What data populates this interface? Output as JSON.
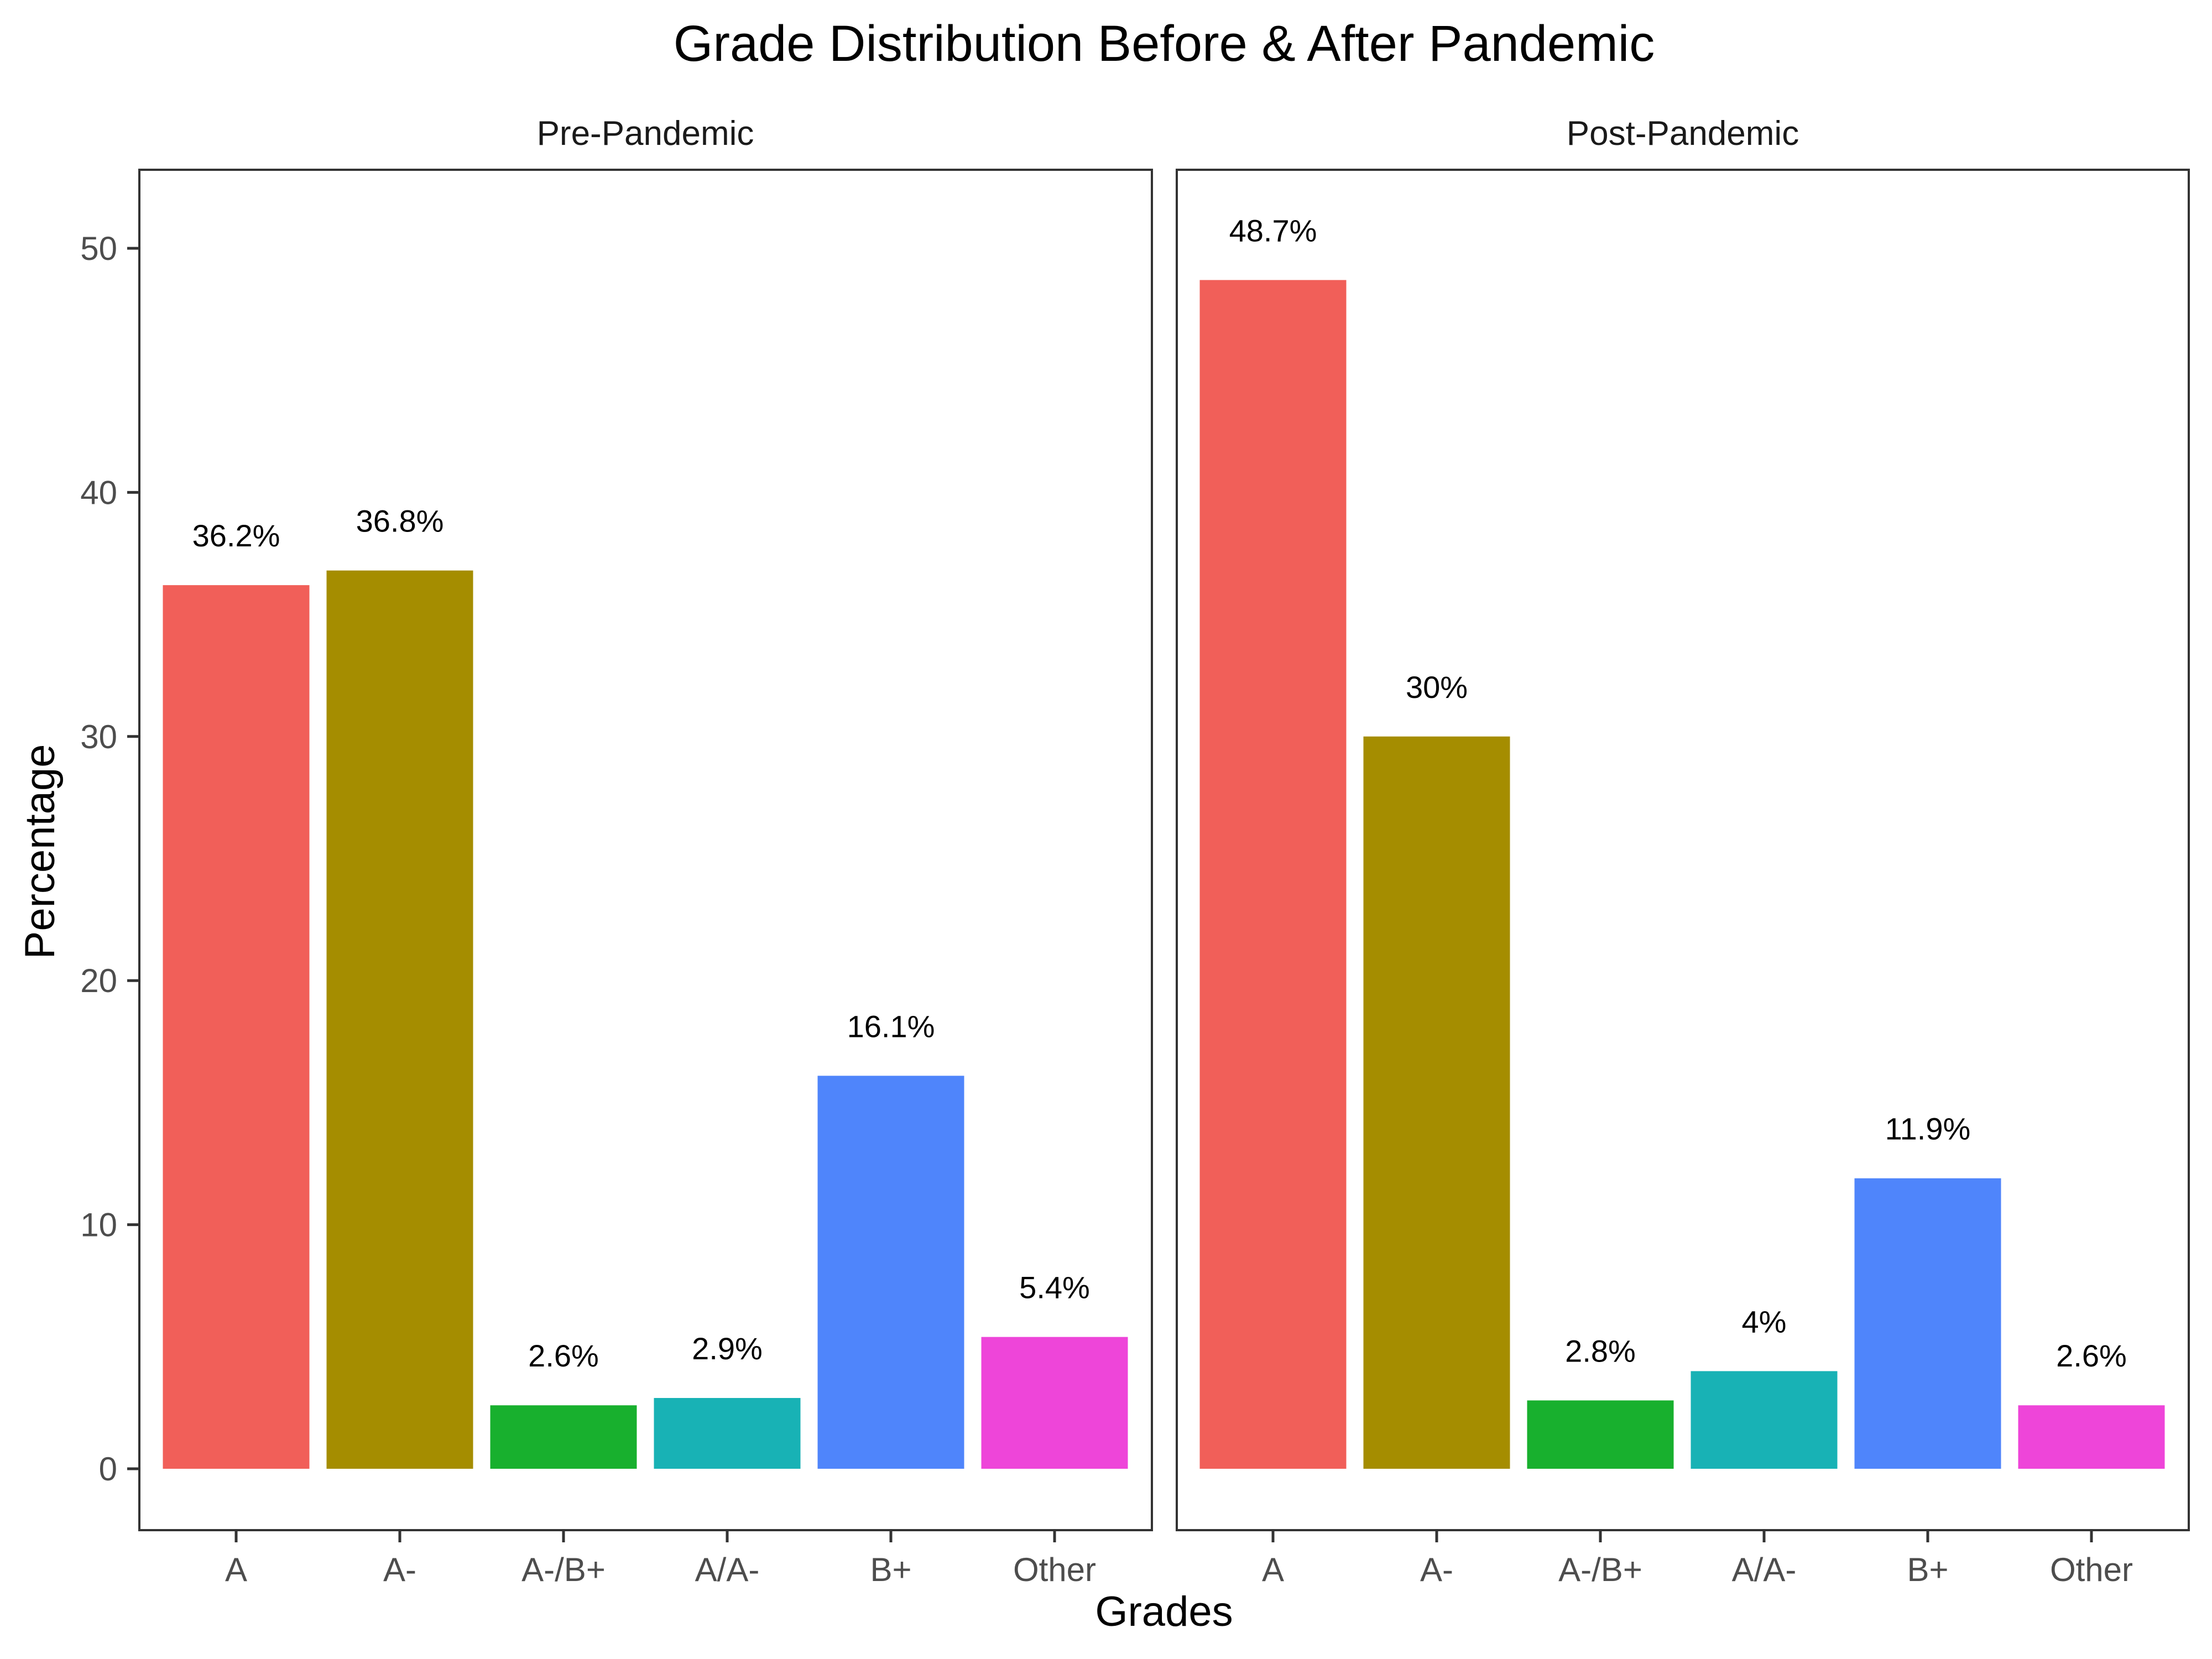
{
  "chart_data": {
    "type": "bar",
    "title": "Grade Distribution Before & After Pandemic",
    "xlabel": "Grades",
    "ylabel": "Percentage",
    "ylim": [
      -3.2,
      53.5
    ],
    "yticks": [
      0,
      10,
      20,
      30,
      40,
      50
    ],
    "ytick_labels": [
      "0",
      "10",
      "20",
      "30",
      "40",
      "50"
    ],
    "grid": false,
    "categories": [
      "A",
      "A-",
      "A-/B+",
      "A/A-",
      "B+",
      "Other"
    ],
    "colors": [
      "#F15F59",
      "#A58D00",
      "#18B02E",
      "#18B2B5",
      "#4F85FB",
      "#EE45D9"
    ],
    "panels": [
      {
        "name": "Pre-Pandemic",
        "values": [
          36.2,
          36.8,
          2.6,
          2.9,
          16.1,
          5.4
        ],
        "labels": [
          "36.2%",
          "36.8%",
          "2.6%",
          "2.9%",
          "16.1%",
          "5.4%"
        ]
      },
      {
        "name": "Post-Pandemic",
        "values": [
          48.7,
          30,
          2.8,
          4,
          11.9,
          2.6
        ],
        "labels": [
          "48.7%",
          "30%",
          "2.8%",
          "4%",
          "11.9%",
          "2.6%"
        ]
      }
    ]
  }
}
